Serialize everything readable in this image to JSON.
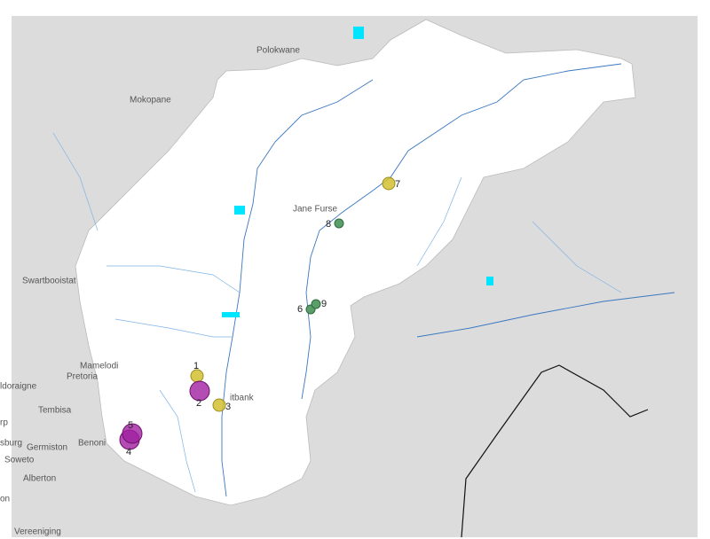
{
  "places": [
    {
      "label": "Polokwane"
    },
    {
      "label": "Mokopane"
    },
    {
      "label": "Jane Furse"
    },
    {
      "label": "Swartbooistat"
    },
    {
      "label": "Mamelodi"
    },
    {
      "label": "Pretoria"
    },
    {
      "label": "ldoraigne"
    },
    {
      "label": "Tembisa"
    },
    {
      "label": "rp"
    },
    {
      "label": "sburg"
    },
    {
      "label": "Germiston"
    },
    {
      "label": "Benoni"
    },
    {
      "label": "Soweto"
    },
    {
      "label": "Alberton"
    },
    {
      "label": "on"
    },
    {
      "label": "Vereeniging"
    },
    {
      "label": "itbank"
    }
  ],
  "sites": [
    {
      "label": "1"
    },
    {
      "label": "2"
    },
    {
      "label": "3"
    },
    {
      "label": "4"
    },
    {
      "label": "5"
    },
    {
      "label": "6"
    },
    {
      "label": "7"
    },
    {
      "label": "8"
    },
    {
      "label": "9"
    }
  ]
}
